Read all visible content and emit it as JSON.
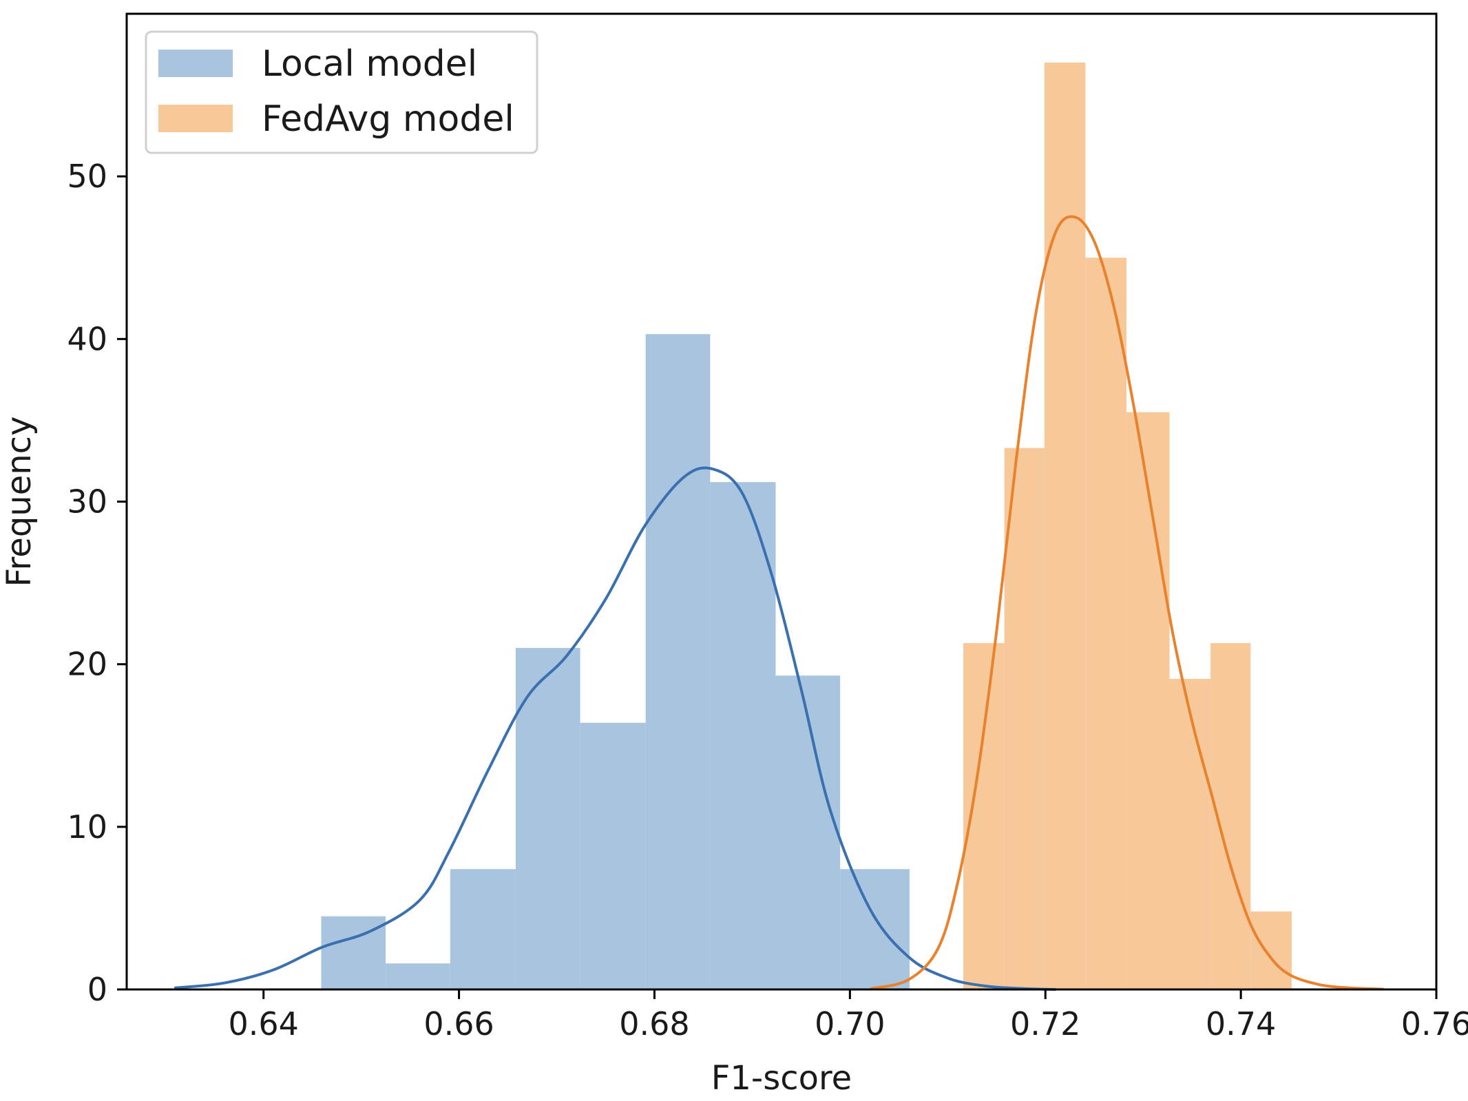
{
  "chart_data": {
    "type": "bar",
    "title": "",
    "xlabel": "F1-score",
    "ylabel": "Frequency",
    "xlim": [
      0.626,
      0.76
    ],
    "ylim": [
      0,
      60
    ],
    "x_ticks": [
      "0.64",
      "0.66",
      "0.68",
      "0.70",
      "0.72",
      "0.74",
      "0.76"
    ],
    "y_ticks": [
      "0",
      "10",
      "20",
      "30",
      "40",
      "50"
    ],
    "grid": false,
    "legend_position": "top-left",
    "series": [
      {
        "name": "Local model",
        "bar_color": "#a9c4df",
        "line_color": "#3a70b0",
        "bins": [
          {
            "x0": 0.6459,
            "x1": 0.6525,
            "value": 4.5
          },
          {
            "x0": 0.6525,
            "x1": 0.6591,
            "value": 1.6
          },
          {
            "x0": 0.6591,
            "x1": 0.6658,
            "value": 7.4
          },
          {
            "x0": 0.6658,
            "x1": 0.6724,
            "value": 21.0
          },
          {
            "x0": 0.6724,
            "x1": 0.6791,
            "value": 16.4
          },
          {
            "x0": 0.6791,
            "x1": 0.6857,
            "value": 40.3
          },
          {
            "x0": 0.6857,
            "x1": 0.6924,
            "value": 31.2
          },
          {
            "x0": 0.6924,
            "x1": 0.699,
            "value": 19.3
          },
          {
            "x0": 0.699,
            "x1": 0.7061,
            "value": 7.4
          }
        ],
        "kde": {
          "x": [
            0.631,
            0.636,
            0.641,
            0.646,
            0.651,
            0.656,
            0.659,
            0.663,
            0.667,
            0.671,
            0.675,
            0.679,
            0.683,
            0.686,
            0.689,
            0.692,
            0.695,
            0.698,
            0.702,
            0.706,
            0.71,
            0.714,
            0.718,
            0.721
          ],
          "y": [
            0.1,
            0.4,
            1.2,
            2.6,
            3.6,
            5.5,
            8.5,
            13.5,
            18.0,
            20.5,
            24.0,
            28.5,
            31.5,
            32.0,
            30.5,
            25.5,
            18.5,
            11.0,
            5.0,
            2.0,
            0.7,
            0.2,
            0.05,
            0.0
          ]
        }
      },
      {
        "name": "FedAvg model",
        "bar_color": "#f7c99a",
        "line_color": "#e8822e",
        "bins": [
          {
            "x0": 0.7116,
            "x1": 0.7158,
            "value": 21.3
          },
          {
            "x0": 0.7158,
            "x1": 0.7199,
            "value": 33.3
          },
          {
            "x0": 0.7199,
            "x1": 0.7241,
            "value": 57.0
          },
          {
            "x0": 0.7241,
            "x1": 0.7283,
            "value": 45.0
          },
          {
            "x0": 0.7283,
            "x1": 0.7327,
            "value": 35.5
          },
          {
            "x0": 0.7327,
            "x1": 0.7369,
            "value": 19.1
          },
          {
            "x0": 0.7369,
            "x1": 0.741,
            "value": 21.3
          },
          {
            "x0": 0.741,
            "x1": 0.7452,
            "value": 4.8
          }
        ],
        "kde": {
          "x": [
            0.7022,
            0.706,
            0.709,
            0.711,
            0.713,
            0.715,
            0.717,
            0.719,
            0.721,
            0.723,
            0.725,
            0.727,
            0.729,
            0.731,
            0.733,
            0.735,
            0.737,
            0.739,
            0.741,
            0.743,
            0.745,
            0.748,
            0.751,
            0.7545
          ],
          "y": [
            0.05,
            0.6,
            2.5,
            6.5,
            13.0,
            22.0,
            32.5,
            41.5,
            46.5,
            47.5,
            46.0,
            42.0,
            36.0,
            29.0,
            22.0,
            16.5,
            12.0,
            7.5,
            4.0,
            2.0,
            0.9,
            0.3,
            0.1,
            0.02
          ]
        }
      }
    ]
  }
}
